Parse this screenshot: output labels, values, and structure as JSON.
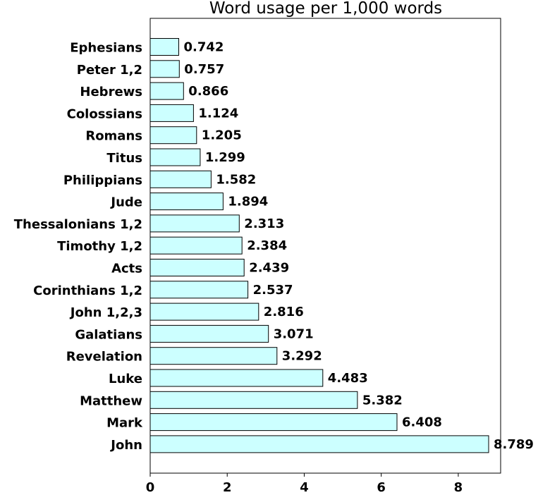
{
  "chart_data": {
    "type": "bar",
    "orientation": "horizontal",
    "title": "Word usage per 1,000 words",
    "xlabel": "",
    "ylabel": "",
    "categories": [
      "Ephesians",
      "Peter 1,2",
      "Hebrews",
      "Colossians",
      "Romans",
      "Titus",
      "Philippians",
      "Jude",
      "Thessalonians 1,2",
      "Timothy 1,2",
      "Acts",
      "Corinthians 1,2",
      "John 1,2,3",
      "Galatians",
      "Revelation",
      "Luke",
      "Matthew",
      "Mark",
      "John"
    ],
    "values": [
      0.742,
      0.757,
      0.866,
      1.124,
      1.205,
      1.299,
      1.582,
      1.894,
      2.313,
      2.384,
      2.439,
      2.537,
      2.816,
      3.071,
      3.292,
      4.483,
      5.382,
      6.408,
      8.789
    ],
    "value_labels": [
      "0.742",
      "0.757",
      "0.866",
      "1.124",
      "1.205",
      "1.299",
      "1.582",
      "1.894",
      "2.313",
      "2.384",
      "2.439",
      "2.537",
      "2.816",
      "3.071",
      "3.292",
      "4.483",
      "5.382",
      "6.408",
      "8.789"
    ],
    "xticks": [
      "0",
      "2",
      "4",
      "6",
      "8"
    ],
    "xlim": [
      0,
      9.1
    ],
    "grid": false,
    "bar_color": "#ccffff",
    "bar_edge_color": "#000000"
  }
}
